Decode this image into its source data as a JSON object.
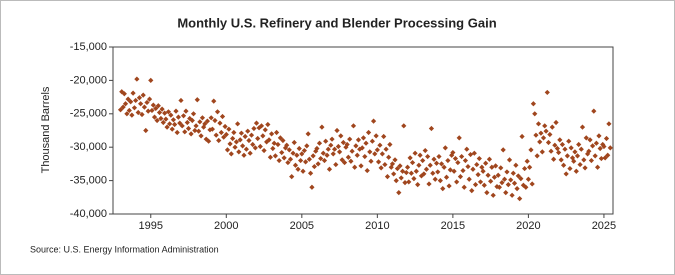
{
  "chart_data": {
    "type": "scatter",
    "title": "Monthly U.S. Refinery and Blender Processing Gain",
    "ylabel": "Thousand Barrels",
    "source": "Source: U.S. Energy Information Administration",
    "color": "#a0461e",
    "grid": false,
    "xlim": [
      1992.5,
      2025.6
    ],
    "xticks": [
      1995,
      2000,
      2005,
      2010,
      2015,
      2020,
      2025
    ],
    "ylim": [
      -40000,
      -15000
    ],
    "yticks": [
      {
        "value": -40000,
        "label": "-40,000"
      },
      {
        "value": -35000,
        "label": "-35,000"
      },
      {
        "value": -30000,
        "label": "-30,000"
      },
      {
        "value": -25000,
        "label": "-25,000"
      },
      {
        "value": -20000,
        "label": "-20,000"
      },
      {
        "value": -15000,
        "label": "-15,000"
      }
    ],
    "x": [
      1993.0,
      1993.08,
      1993.17,
      1993.25,
      1993.33,
      1993.42,
      1993.5,
      1993.58,
      1993.67,
      1993.75,
      1993.83,
      1993.92,
      1994.0,
      1994.08,
      1994.17,
      1994.25,
      1994.33,
      1994.42,
      1994.5,
      1994.58,
      1994.67,
      1994.75,
      1994.83,
      1994.92,
      1995.0,
      1995.08,
      1995.17,
      1995.25,
      1995.33,
      1995.42,
      1995.5,
      1995.58,
      1995.67,
      1995.75,
      1995.83,
      1995.92,
      1996.0,
      1996.08,
      1996.17,
      1996.25,
      1996.33,
      1996.42,
      1996.5,
      1996.58,
      1996.67,
      1996.75,
      1996.83,
      1996.92,
      1997.0,
      1997.08,
      1997.17,
      1997.25,
      1997.33,
      1997.42,
      1997.5,
      1997.58,
      1997.67,
      1997.75,
      1997.83,
      1997.92,
      1998.0,
      1998.08,
      1998.17,
      1998.25,
      1998.33,
      1998.42,
      1998.5,
      1998.58,
      1998.67,
      1998.75,
      1998.83,
      1998.92,
      1999.0,
      1999.08,
      1999.17,
      1999.25,
      1999.33,
      1999.42,
      1999.5,
      1999.58,
      1999.67,
      1999.75,
      1999.83,
      1999.92,
      2000.0,
      2000.08,
      2000.17,
      2000.25,
      2000.33,
      2000.42,
      2000.5,
      2000.58,
      2000.67,
      2000.75,
      2000.83,
      2000.92,
      2001.0,
      2001.08,
      2001.17,
      2001.25,
      2001.33,
      2001.42,
      2001.5,
      2001.58,
      2001.67,
      2001.75,
      2001.83,
      2001.92,
      2002.0,
      2002.08,
      2002.17,
      2002.25,
      2002.33,
      2002.42,
      2002.5,
      2002.58,
      2002.67,
      2002.75,
      2002.83,
      2002.92,
      2003.0,
      2003.08,
      2003.17,
      2003.25,
      2003.33,
      2003.42,
      2003.5,
      2003.58,
      2003.67,
      2003.75,
      2003.83,
      2003.92,
      2004.0,
      2004.08,
      2004.17,
      2004.25,
      2004.33,
      2004.42,
      2004.5,
      2004.58,
      2004.67,
      2004.75,
      2004.83,
      2004.92,
      2005.0,
      2005.08,
      2005.17,
      2005.25,
      2005.33,
      2005.42,
      2005.5,
      2005.58,
      2005.67,
      2005.75,
      2005.83,
      2005.92,
      2006.0,
      2006.08,
      2006.17,
      2006.25,
      2006.33,
      2006.42,
      2006.5,
      2006.58,
      2006.67,
      2006.75,
      2006.83,
      2006.92,
      2007.0,
      2007.08,
      2007.17,
      2007.25,
      2007.33,
      2007.42,
      2007.5,
      2007.58,
      2007.67,
      2007.75,
      2007.83,
      2007.92,
      2008.0,
      2008.08,
      2008.17,
      2008.25,
      2008.33,
      2008.42,
      2008.5,
      2008.58,
      2008.67,
      2008.75,
      2008.83,
      2008.92,
      2009.0,
      2009.08,
      2009.17,
      2009.25,
      2009.33,
      2009.42,
      2009.5,
      2009.58,
      2009.67,
      2009.75,
      2009.83,
      2009.92,
      2010.0,
      2010.08,
      2010.17,
      2010.25,
      2010.33,
      2010.42,
      2010.5,
      2010.58,
      2010.67,
      2010.75,
      2010.83,
      2010.92,
      2011.0,
      2011.08,
      2011.17,
      2011.25,
      2011.33,
      2011.42,
      2011.5,
      2011.58,
      2011.67,
      2011.75,
      2011.83,
      2011.92,
      2012.0,
      2012.08,
      2012.17,
      2012.25,
      2012.33,
      2012.42,
      2012.5,
      2012.58,
      2012.67,
      2012.75,
      2012.83,
      2012.92,
      2013.0,
      2013.08,
      2013.17,
      2013.25,
      2013.33,
      2013.42,
      2013.5,
      2013.58,
      2013.67,
      2013.75,
      2013.83,
      2013.92,
      2014.0,
      2014.08,
      2014.17,
      2014.25,
      2014.33,
      2014.42,
      2014.5,
      2014.58,
      2014.67,
      2014.75,
      2014.83,
      2014.92,
      2015.0,
      2015.08,
      2015.17,
      2015.25,
      2015.33,
      2015.42,
      2015.5,
      2015.58,
      2015.67,
      2015.75,
      2015.83,
      2015.92,
      2016.0,
      2016.08,
      2016.17,
      2016.25,
      2016.33,
      2016.42,
      2016.5,
      2016.58,
      2016.67,
      2016.75,
      2016.83,
      2016.92,
      2017.0,
      2017.08,
      2017.17,
      2017.25,
      2017.33,
      2017.42,
      2017.5,
      2017.58,
      2017.67,
      2017.75,
      2017.83,
      2017.92,
      2018.0,
      2018.08,
      2018.17,
      2018.25,
      2018.33,
      2018.42,
      2018.5,
      2018.58,
      2018.67,
      2018.75,
      2018.83,
      2018.92,
      2019.0,
      2019.08,
      2019.17,
      2019.25,
      2019.33,
      2019.42,
      2019.5,
      2019.58,
      2019.67,
      2019.75,
      2019.83,
      2019.92,
      2020.0,
      2020.08,
      2020.17,
      2020.25,
      2020.33,
      2020.42,
      2020.5,
      2020.58,
      2020.67,
      2020.75,
      2020.83,
      2020.92,
      2021.0,
      2021.08,
      2021.17,
      2021.25,
      2021.33,
      2021.42,
      2021.5,
      2021.58,
      2021.67,
      2021.75,
      2021.83,
      2021.92,
      2022.0,
      2022.08,
      2022.17,
      2022.25,
      2022.33,
      2022.42,
      2022.5,
      2022.58,
      2022.67,
      2022.75,
      2022.83,
      2022.92,
      2023.0,
      2023.08,
      2023.17,
      2023.25,
      2023.33,
      2023.42,
      2023.5,
      2023.58,
      2023.67,
      2023.75,
      2023.83,
      2023.92,
      2024.0,
      2024.08,
      2024.17,
      2024.25,
      2024.33,
      2024.42,
      2024.5,
      2024.58,
      2024.67,
      2024.75,
      2024.83,
      2024.92,
      2025.0,
      2025.08,
      2025.17,
      2025.25,
      2025.33,
      2025.42
    ],
    "values": [
      -24400,
      -21700,
      -24000,
      -22000,
      -23500,
      -25000,
      -22800,
      -24500,
      -23200,
      -25200,
      -21900,
      -24100,
      -23000,
      -19800,
      -24800,
      -22600,
      -23500,
      -25100,
      -22200,
      -24000,
      -27500,
      -23300,
      -24600,
      -22800,
      -20000,
      -24500,
      -23700,
      -25500,
      -24200,
      -26000,
      -23800,
      -24800,
      -25700,
      -24300,
      -26300,
      -24900,
      -25800,
      -27000,
      -24700,
      -26500,
      -25200,
      -27300,
      -25900,
      -26600,
      -24600,
      -27800,
      -25500,
      -26400,
      -23000,
      -26800,
      -25300,
      -27700,
      -24600,
      -26300,
      -27200,
      -25700,
      -28000,
      -26000,
      -25000,
      -27500,
      -26800,
      -22900,
      -27600,
      -26200,
      -28300,
      -25600,
      -27000,
      -26500,
      -28800,
      -26100,
      -29100,
      -27400,
      -25600,
      -27300,
      -23100,
      -26000,
      -28200,
      -24700,
      -29000,
      -26400,
      -27800,
      -25400,
      -28500,
      -26900,
      -28100,
      -30400,
      -27300,
      -29500,
      -31000,
      -28700,
      -27800,
      -30000,
      -29200,
      -26500,
      -30700,
      -28900,
      -27900,
      -29800,
      -31200,
      -28400,
      -30300,
      -27600,
      -29000,
      -30900,
      -28200,
      -29600,
      -27200,
      -30100,
      -26400,
      -28700,
      -27100,
      -29900,
      -26800,
      -28300,
      -30500,
      -27400,
      -29200,
      -26600,
      -28900,
      -31500,
      -28000,
      -30200,
      -29400,
      -31300,
      -27800,
      -29600,
      -32000,
      -28600,
      -30800,
      -29000,
      -31600,
      -30100,
      -29700,
      -32300,
      -30400,
      -31800,
      -34400,
      -30900,
      -29300,
      -32700,
      -31200,
      -33300,
      -30200,
      -32000,
      -31000,
      -33600,
      -30500,
      -32200,
      -29800,
      -28000,
      -31800,
      -33900,
      -36000,
      -31300,
      -32900,
      -30600,
      -30200,
      -32500,
      -29400,
      -31700,
      -27000,
      -30900,
      -32000,
      -29100,
      -31200,
      -30300,
      -33300,
      -29700,
      -28800,
      -31000,
      -30300,
      -32600,
      -27500,
      -29900,
      -30700,
      -28300,
      -31900,
      -29300,
      -32300,
      -30000,
      -29600,
      -31500,
      -28800,
      -32100,
      -30600,
      -26800,
      -33000,
      -29800,
      -31200,
      -28900,
      -30300,
      -32800,
      -30100,
      -28600,
      -31400,
      -29400,
      -33500,
      -27800,
      -30700,
      -32100,
      -29100,
      -26100,
      -31000,
      -28300,
      -30400,
      -32200,
      -29700,
      -33100,
      -31000,
      -28400,
      -32600,
      -30300,
      -34400,
      -31500,
      -29600,
      -33000,
      -32500,
      -34000,
      -31900,
      -35000,
      -33200,
      -36800,
      -32800,
      -34600,
      -33600,
      -26800,
      -35300,
      -33800,
      -33000,
      -35200,
      -31600,
      -33900,
      -32300,
      -34700,
      -30900,
      -33600,
      -35600,
      -32700,
      -31200,
      -34300,
      -32000,
      -34000,
      -30500,
      -33300,
      -31400,
      -35500,
      -32700,
      -27200,
      -33900,
      -31800,
      -34800,
      -32400,
      -33700,
      -31400,
      -35000,
      -32500,
      -36200,
      -33000,
      -30100,
      -34500,
      -32000,
      -35800,
      -33400,
      -31200,
      -30800,
      -33600,
      -31700,
      -35200,
      -32300,
      -28600,
      -34400,
      -31400,
      -33500,
      -36000,
      -32000,
      -30300,
      -32900,
      -34800,
      -31100,
      -36500,
      -33300,
      -30900,
      -35600,
      -32600,
      -34100,
      -31700,
      -35200,
      -33000,
      -33600,
      -35700,
      -32400,
      -36800,
      -34200,
      -31800,
      -35100,
      -33000,
      -37200,
      -34500,
      -32800,
      -35900,
      -34200,
      -36000,
      -33100,
      -35300,
      -30400,
      -34800,
      -36800,
      -33700,
      -35600,
      -31900,
      -34900,
      -37200,
      -33900,
      -35400,
      -32700,
      -36200,
      -34300,
      -37700,
      -34700,
      -28400,
      -35700,
      -33200,
      -36000,
      -32100,
      -34800,
      -33000,
      -30400,
      -35500,
      -23500,
      -25000,
      -28200,
      -31300,
      -26500,
      -29200,
      -27900,
      -30700,
      -28600,
      -26800,
      -27600,
      -21800,
      -29300,
      -28100,
      -30600,
      -27000,
      -31800,
      -29700,
      -26300,
      -30200,
      -30800,
      -28900,
      -31900,
      -29600,
      -32700,
      -30300,
      -34000,
      -31300,
      -29100,
      -33200,
      -30100,
      -31600,
      -32100,
      -30700,
      -33600,
      -31300,
      -29600,
      -32600,
      -30300,
      -27000,
      -31900,
      -33100,
      -28600,
      -31000,
      -30600,
      -28900,
      -32000,
      -29800,
      -24600,
      -31300,
      -29400,
      -33000,
      -28300,
      -30200,
      -31700,
      -29600,
      -29900,
      -31600,
      -28700,
      -31200,
      -26500,
      -30100
    ]
  }
}
